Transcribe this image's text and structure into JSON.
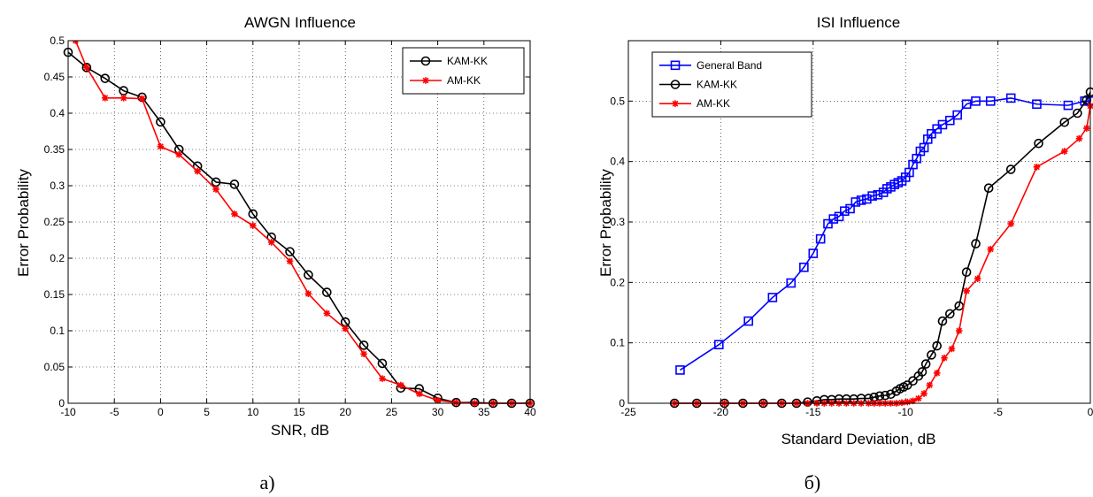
{
  "charts": [
    {
      "id": "awgn",
      "caption": "а)",
      "chart_data": {
        "type": "line",
        "title": "AWGN Influence",
        "xlabel": "SNR, dB",
        "ylabel": "Error Probability",
        "xlim": [
          -10,
          40
        ],
        "ylim": [
          0,
          0.5
        ],
        "xticks": [
          -10,
          -5,
          0,
          5,
          10,
          15,
          20,
          25,
          30,
          35,
          40
        ],
        "yticks": [
          0,
          0.05,
          0.1,
          0.15,
          0.2,
          0.25,
          0.3,
          0.35,
          0.4,
          0.45,
          0.5
        ],
        "xtick_labels": [
          "-10",
          "-5",
          "0",
          "5",
          "10",
          "15",
          "20",
          "25",
          "30",
          "35",
          "40"
        ],
        "ytick_labels": [
          "0",
          "0.05",
          "0.1",
          "0.15",
          "0.2",
          "0.25",
          "0.3",
          "0.35",
          "0.4",
          "0.45",
          "0.5"
        ],
        "grid": true,
        "legend_position": "top-right",
        "series": [
          {
            "name": "KAM-KK",
            "color": "#000000",
            "marker": "circle",
            "x": [
              -10,
              -8,
              -6,
              -4,
              -2,
              0,
              2,
              4,
              6,
              8,
              10,
              12,
              14,
              16,
              18,
              20,
              22,
              24,
              26,
              28,
              30,
              32,
              34,
              36,
              38,
              40
            ],
            "y": [
              0.484,
              0.463,
              0.448,
              0.431,
              0.422,
              0.388,
              0.35,
              0.327,
              0.305,
              0.302,
              0.261,
              0.229,
              0.209,
              0.177,
              0.153,
              0.112,
              0.08,
              0.055,
              0.021,
              0.02,
              0.007,
              0.001,
              0.001,
              0.0,
              0.0,
              0.0
            ]
          },
          {
            "name": "AM-KK",
            "color": "#ff0000",
            "marker": "star",
            "x": [
              -9.2,
              -8,
              -6,
              -4,
              -2,
              0,
              2,
              4,
              6,
              8,
              10,
              12,
              14,
              16,
              18,
              20,
              22,
              24,
              26,
              28,
              30,
              32,
              34,
              36,
              38,
              40
            ],
            "y": [
              0.5,
              0.463,
              0.421,
              0.421,
              0.42,
              0.354,
              0.343,
              0.32,
              0.295,
              0.261,
              0.245,
              0.222,
              0.196,
              0.151,
              0.124,
              0.103,
              0.068,
              0.034,
              0.025,
              0.013,
              0.004,
              0.001,
              0.0,
              0.0,
              0.0,
              0.0
            ]
          }
        ]
      }
    },
    {
      "id": "isi",
      "caption": "б)",
      "chart_data": {
        "type": "line",
        "title": "ISI Influence",
        "xlabel": "Standard Deviation, dB",
        "ylabel": "Error Probability",
        "xlim": [
          -25,
          0
        ],
        "ylim": [
          0,
          0.6
        ],
        "xticks": [
          -25,
          -20,
          -15,
          -10,
          -5,
          0
        ],
        "yticks": [
          0,
          0.1,
          0.2,
          0.3,
          0.4,
          0.5
        ],
        "xtick_labels": [
          "-25",
          "-20",
          "-15",
          "-10",
          "-5",
          "0"
        ],
        "ytick_labels": [
          "0",
          "0.1",
          "0.2",
          "0.3",
          "0.4",
          "0.5"
        ],
        "grid": true,
        "legend_position": "top-left",
        "series": [
          {
            "name": "General Band",
            "color": "#0000ff",
            "marker": "square",
            "x": [
              -22.2,
              -20.1,
              -18.5,
              -17.2,
              -16.2,
              -15.5,
              -15.0,
              -14.6,
              -14.2,
              -13.9,
              -13.6,
              -13.3,
              -13.0,
              -12.7,
              -12.4,
              -12.1,
              -11.8,
              -11.5,
              -11.2,
              -11.0,
              -10.8,
              -10.6,
              -10.4,
              -10.2,
              -10.0,
              -9.8,
              -9.6,
              -9.4,
              -9.2,
              -9.0,
              -8.8,
              -8.6,
              -8.3,
              -8.0,
              -7.6,
              -7.2,
              -6.7,
              -6.2,
              -5.4,
              -4.3,
              -2.9,
              -1.2,
              -0.3,
              0
            ],
            "y": [
              0.055,
              0.097,
              0.136,
              0.175,
              0.199,
              0.225,
              0.248,
              0.272,
              0.297,
              0.305,
              0.309,
              0.318,
              0.322,
              0.333,
              0.336,
              0.338,
              0.343,
              0.345,
              0.349,
              0.355,
              0.358,
              0.362,
              0.365,
              0.368,
              0.374,
              0.382,
              0.395,
              0.405,
              0.417,
              0.423,
              0.437,
              0.446,
              0.454,
              0.461,
              0.468,
              0.477,
              0.495,
              0.5,
              0.5,
              0.505,
              0.495,
              0.493,
              0.5,
              0.5
            ]
          },
          {
            "name": "KAM-KK",
            "color": "#000000",
            "marker": "circle",
            "x": [
              -22.5,
              -21.3,
              -19.8,
              -18.8,
              -17.7,
              -16.7,
              -15.9,
              -15.3,
              -14.8,
              -14.4,
              -14.0,
              -13.6,
              -13.2,
              -12.8,
              -12.4,
              -12.0,
              -11.7,
              -11.4,
              -11.1,
              -10.8,
              -10.5,
              -10.3,
              -10.1,
              -9.9,
              -9.6,
              -9.3,
              -9.1,
              -8.9,
              -8.6,
              -8.3,
              -8.0,
              -7.6,
              -7.1,
              -6.7,
              -6.2,
              -5.5,
              -4.3,
              -2.8,
              -1.4,
              -0.7,
              -0.2,
              0
            ],
            "y": [
              0.0,
              0.0,
              0.0,
              0.0,
              0.0,
              0.0,
              0.0,
              0.002,
              0.004,
              0.006,
              0.006,
              0.007,
              0.007,
              0.007,
              0.008,
              0.008,
              0.01,
              0.012,
              0.013,
              0.015,
              0.02,
              0.024,
              0.027,
              0.03,
              0.037,
              0.045,
              0.052,
              0.065,
              0.08,
              0.095,
              0.136,
              0.148,
              0.161,
              0.217,
              0.264,
              0.356,
              0.387,
              0.43,
              0.465,
              0.48,
              0.502,
              0.515
            ]
          },
          {
            "name": "AM-KK",
            "color": "#ff0000",
            "marker": "star",
            "x": [
              -22.5,
              -21.3,
              -19.8,
              -18.8,
              -17.7,
              -16.7,
              -15.9,
              -15.3,
              -14.8,
              -14.4,
              -14.0,
              -13.6,
              -13.2,
              -12.8,
              -12.4,
              -12.0,
              -11.7,
              -11.4,
              -11.1,
              -10.8,
              -10.5,
              -10.2,
              -9.9,
              -9.6,
              -9.3,
              -9.0,
              -8.7,
              -8.3,
              -7.9,
              -7.5,
              -7.1,
              -6.7,
              -6.1,
              -5.4,
              -4.3,
              -2.9,
              -1.4,
              -0.6,
              -0.2,
              0
            ],
            "y": [
              0.0,
              0.0,
              0.0,
              0.0,
              0.0,
              0.0,
              0.0,
              0.0,
              0.0,
              0.0,
              0.0,
              0.0,
              0.0,
              0.0,
              0.0,
              0.0,
              0.0,
              0.0,
              0.0,
              0.0,
              0.0,
              0.001,
              0.002,
              0.004,
              0.008,
              0.016,
              0.03,
              0.05,
              0.075,
              0.09,
              0.12,
              0.186,
              0.206,
              0.255,
              0.297,
              0.391,
              0.417,
              0.438,
              0.455,
              0.492
            ]
          }
        ]
      }
    }
  ]
}
